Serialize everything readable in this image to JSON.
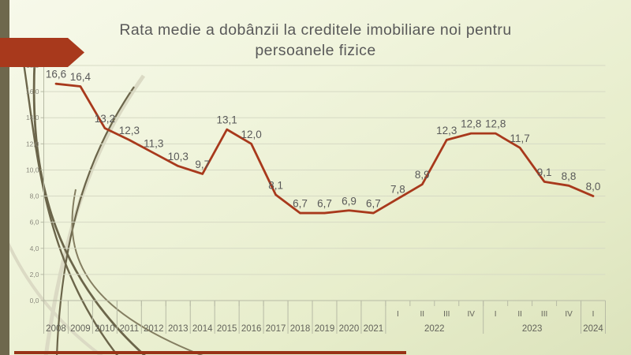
{
  "slide": {
    "title": "Rata medie a dobânzii la creditele imobiliare noi pentru persoanele fizice"
  },
  "colors": {
    "line": "#a8391c",
    "ribbon": "#a8391c",
    "left_bar": "#6e684d",
    "bottom_strip": "#993317",
    "grid": "#d6d9c4",
    "axis": "#b7baa5",
    "title_text": "#595959",
    "label_text": "#595959",
    "x_axis_text": "#63635b",
    "y_axis_text": "#8a897d",
    "grass_dark": "#6b654a",
    "grass_mid": "#847e61",
    "grass_light": "#dbdac4"
  },
  "chart_data": {
    "type": "line",
    "title": "Rata medie a dobânzii la creditele imobiliare noi pentru persoanele fizice",
    "xlabel": "",
    "ylabel": "",
    "ylim": [
      0,
      18
    ],
    "y_tick_step": 2,
    "grid": true,
    "legend": "none",
    "marker": "none",
    "values": [
      16.6,
      16.4,
      13.2,
      12.3,
      11.3,
      10.3,
      9.7,
      13.1,
      12.0,
      8.1,
      6.7,
      6.7,
      6.9,
      6.7,
      7.8,
      8.9,
      12.3,
      12.8,
      12.8,
      11.7,
      9.1,
      8.8,
      8.0
    ],
    "point_labels": [
      "16,6",
      "16,4",
      "13,2",
      "12,3",
      "11,3",
      "10,3",
      "9,7",
      "13,1",
      "12,0",
      "8,1",
      "6,7",
      "6,7",
      "6,9",
      "6,7",
      "7,8",
      "8,9",
      "12,3",
      "12,8",
      "12,8",
      "11,7",
      "9,1",
      "8,8",
      "8,0"
    ],
    "y_tick_labels": [
      "0,0",
      "2,0",
      "4,0",
      "6,0",
      "8,0",
      "10,0",
      "12,0",
      "14,0",
      "16,0",
      "18,0"
    ],
    "x_axis": {
      "quarter_row": [
        "",
        "",
        "",
        "",
        "",
        "",
        "",
        "",
        "",
        "",
        "",
        "",
        "",
        "",
        "I",
        "II",
        "III",
        "IV",
        "I",
        "II",
        "III",
        "IV",
        "I"
      ],
      "year_groups": [
        {
          "label": "2008",
          "span": 1
        },
        {
          "label": "2009",
          "span": 1
        },
        {
          "label": "2010",
          "span": 1
        },
        {
          "label": "2011",
          "span": 1
        },
        {
          "label": "2012",
          "span": 1
        },
        {
          "label": "2013",
          "span": 1
        },
        {
          "label": "2014",
          "span": 1
        },
        {
          "label": "2015",
          "span": 1
        },
        {
          "label": "2016",
          "span": 1
        },
        {
          "label": "2017",
          "span": 1
        },
        {
          "label": "2018",
          "span": 1
        },
        {
          "label": "2019",
          "span": 1
        },
        {
          "label": "2020",
          "span": 1
        },
        {
          "label": "2021",
          "span": 1
        },
        {
          "label": "2022",
          "span": 4
        },
        {
          "label": "2023",
          "span": 4
        },
        {
          "label": "2024",
          "span": 1
        }
      ]
    }
  }
}
